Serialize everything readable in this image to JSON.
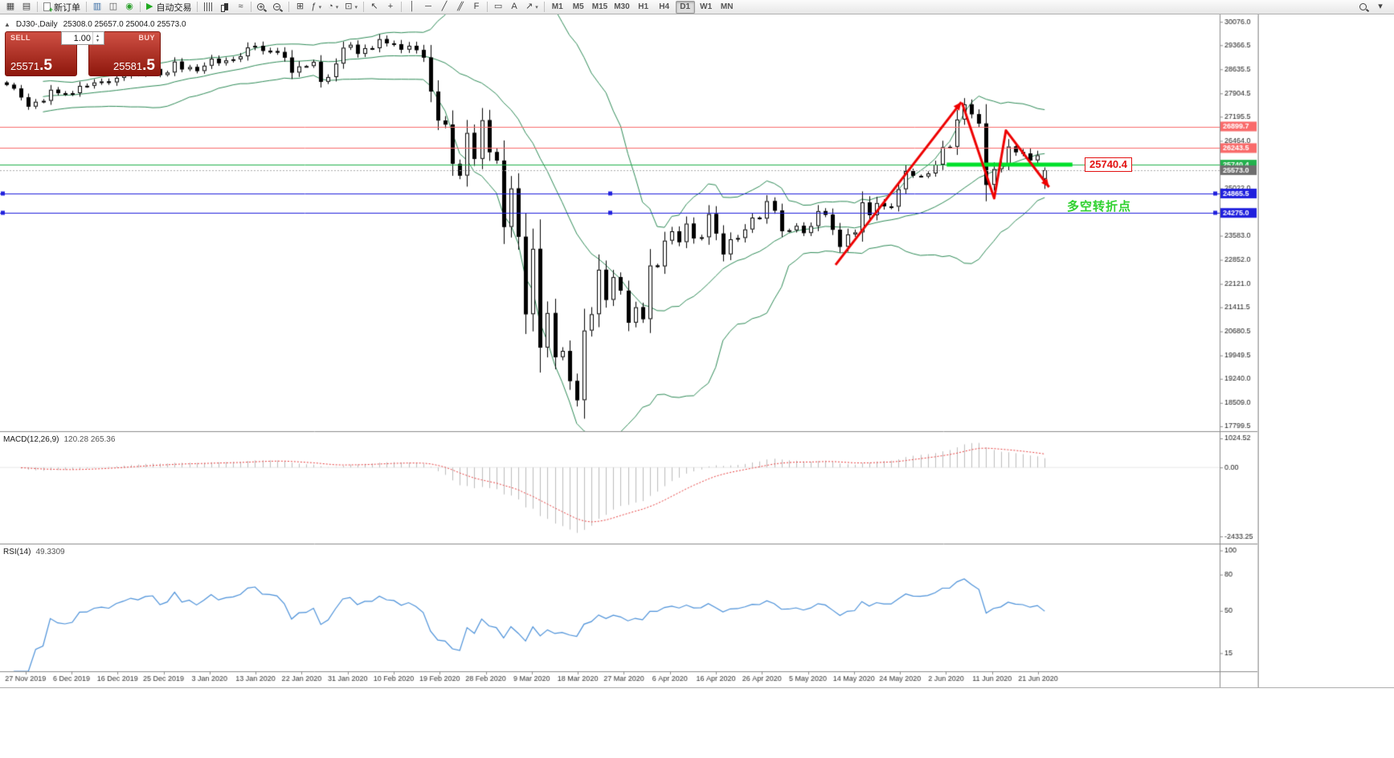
{
  "toolbar": {
    "caret_glyph": "▾",
    "items": [
      {
        "t": "btn",
        "name": "new-chart",
        "glyph": "▦"
      },
      {
        "t": "btn",
        "name": "chart-profiles",
        "glyph": "▤"
      },
      {
        "t": "sep"
      },
      {
        "t": "btn",
        "name": "new-order-button",
        "icon_class": "icon-doc",
        "label": "新订单"
      },
      {
        "t": "sep"
      },
      {
        "t": "btn",
        "name": "market-watch",
        "glyph": "▥",
        "color": "#3a6ea5"
      },
      {
        "t": "btn",
        "name": "data-window",
        "glyph": "◫",
        "color": "#555555"
      },
      {
        "t": "btn",
        "name": "expert-advisors",
        "glyph": "◉",
        "color": "#2ca02c"
      },
      {
        "t": "sep"
      },
      {
        "t": "btn",
        "name": "auto-trading-button",
        "glyph": "▶",
        "color": "#1faa1f",
        "label": "自动交易"
      },
      {
        "t": "sep"
      },
      {
        "t": "btn",
        "name": "bar-chart-mode",
        "icon_class": "icon-bars"
      },
      {
        "t": "btn",
        "name": "candlestick-mode",
        "icon_class": "icon-candles"
      },
      {
        "t": "btn",
        "name": "line-chart-mode",
        "glyph": "≈"
      },
      {
        "t": "sep"
      },
      {
        "t": "btn",
        "name": "zoom-in",
        "lens": "+"
      },
      {
        "t": "btn",
        "name": "zoom-out",
        "lens": "−"
      },
      {
        "t": "sep"
      },
      {
        "t": "btn",
        "name": "grid-toggle",
        "glyph": "⊞"
      },
      {
        "t": "btn",
        "name": "indicators-menu",
        "glyph": "ƒ",
        "caret": true
      },
      {
        "t": "btn",
        "name": "periods-menu",
        "glyph": "◔",
        "caret": true
      },
      {
        "t": "btn",
        "name": "templates-menu",
        "glyph": "⊡",
        "caret": true
      },
      {
        "t": "sep"
      },
      {
        "t": "btn",
        "name": "cursor-tool",
        "glyph": "↖"
      },
      {
        "t": "btn",
        "name": "crosshair-tool",
        "glyph": "+"
      },
      {
        "t": "sep"
      },
      {
        "t": "btn",
        "name": "vertical-line-tool",
        "glyph": "│"
      },
      {
        "t": "btn",
        "name": "horizontal-line-tool",
        "glyph": "─"
      },
      {
        "t": "btn",
        "name": "trendline-tool",
        "glyph": "╱"
      },
      {
        "t": "btn",
        "name": "channel-tool",
        "glyph": "╱╱",
        "squeeze": true
      },
      {
        "t": "btn",
        "name": "fibonacci-tool",
        "glyph": "F"
      },
      {
        "t": "sep"
      },
      {
        "t": "btn",
        "name": "shapes-tool",
        "glyph": "▭"
      },
      {
        "t": "btn",
        "name": "text-tool",
        "glyph": "A"
      },
      {
        "t": "btn",
        "name": "arrows-tool",
        "glyph": "↗",
        "caret": true
      },
      {
        "t": "sep"
      }
    ],
    "timeframes": [
      "M1",
      "M5",
      "M15",
      "M30",
      "H1",
      "H4",
      "D1",
      "W1",
      "MN"
    ],
    "active_timeframe": "D1",
    "right_items": [
      {
        "name": "search",
        "lens": ""
      },
      {
        "name": "toolbars-menu",
        "glyph": "▾"
      }
    ]
  },
  "chart_header": {
    "collapse_icon": "▲",
    "symbol_period": "DJ30-,Daily",
    "ohlc_text": "25308.0 25657.0 25004.0 25573.0"
  },
  "trade_panel": {
    "sell_label": "SELL",
    "buy_label": "BUY",
    "volume": "1.00",
    "spin_up": "▴",
    "spin_down": "▾",
    "sell_price_main": "25571",
    "sell_price_dec": ".5",
    "buy_price_main": "25581",
    "buy_price_dec": ".5",
    "sell_price": "25571.5",
    "buy_price": "25581.5"
  },
  "indicator_labels": {
    "macd_name": "MACD(12,26,9)",
    "macd_values": "120.28 265.36",
    "rsi_name": "RSI(14)",
    "rsi_value": "49.3309"
  },
  "chart_data": {
    "type": "candlestick",
    "symbol": "DJ30-",
    "timeframe": "Daily",
    "title": "DJ30-,Daily",
    "ohlc_current": {
      "open": 25308.0,
      "high": 25657.0,
      "low": 25004.0,
      "close": 25573.0
    },
    "ylim": {
      "main": [
        17650,
        30300
      ],
      "macd": [
        -2686,
        1250
      ],
      "rsi": [
        0,
        105
      ]
    },
    "price_axis": [
      30076.0,
      29366.5,
      28635.5,
      27904.5,
      27195.5,
      26464.0,
      25753.0,
      25022.0,
      24312.5,
      23583.0,
      22852.0,
      22121.0,
      21411.5,
      20680.5,
      19949.5,
      19240.0,
      18509.0,
      17799.5
    ],
    "macd_axis": [
      1024.52,
      0.0,
      -2433.25
    ],
    "rsi_axis": [
      100,
      80,
      50,
      15
    ],
    "time_axis": [
      "27 Nov 2019",
      "6 Dec 2019",
      "16 Dec 2019",
      "25 Dec 2019",
      "3 Jan 2020",
      "13 Jan 2020",
      "22 Jan 2020",
      "31 Jan 2020",
      "10 Feb 2020",
      "19 Feb 2020",
      "28 Feb 2020",
      "9 Mar 2020",
      "18 Mar 2020",
      "27 Mar 2020",
      "6 Apr 2020",
      "16 Apr 2020",
      "26 Apr 2020",
      "5 May 2020",
      "14 May 2020",
      "24 May 2020",
      "2 Jun 2020",
      "11 Jun 2020",
      "21 Jun 2020"
    ],
    "closes": [
      28164,
      28051,
      27783,
      27503,
      27650,
      27678,
      28015,
      27910,
      27882,
      27911,
      28132,
      28135,
      28236,
      28267,
      28239,
      28377,
      28455,
      28551,
      28516,
      28621,
      28645,
      28462,
      28538,
      28868,
      28635,
      28704,
      28584,
      28745,
      28957,
      28824,
      28907,
      28939,
      29030,
      29298,
      29348,
      29196,
      29186,
      29160,
      28990,
      28536,
      28723,
      28734,
      28859,
      28256,
      28400,
      28808,
      29291,
      29380,
      29103,
      29277,
      29276,
      29551,
      29423,
      29398,
      29232,
      29348,
      29220,
      28992,
      27961,
      27081,
      26958,
      25767,
      25409,
      26703,
      25917,
      27090,
      26121,
      25865,
      23851,
      25018,
      23553,
      21201,
      23186,
      20189,
      21237,
      19899,
      20087,
      19174,
      18592,
      20705,
      21201,
      22552,
      21637,
      22327,
      21917,
      20944,
      21413,
      21053,
      22680,
      22654,
      23434,
      23719,
      23391,
      23950,
      23504,
      23538,
      24242,
      23650,
      23019,
      23476,
      23515,
      23775,
      24134,
      24102,
      24634,
      24346,
      23724,
      23750,
      23883,
      23665,
      23876,
      24331,
      24222,
      23765,
      23248,
      23625,
      23685,
      24597,
      24207,
      24576,
      24474,
      24465,
      24995,
      25548,
      25401,
      25383,
      25475,
      25743,
      26270,
      26282,
      27111,
      27572,
      27272,
      26990,
      25128,
      25606,
      25763,
      26289,
      26120,
      26080,
      25871,
      26025,
      25573
    ],
    "bollinger": {
      "period": 20,
      "deviation": 2
    },
    "macd": {
      "fast": 12,
      "slow": 26,
      "signal": 9,
      "current_main": 120.28,
      "current_signal": 265.36
    },
    "rsi": {
      "period": 14,
      "current": 49.3309
    },
    "hlines": [
      {
        "price": 26899.7,
        "label": "26899.7",
        "color": "#f96b6b",
        "tag": "#f96b6b",
        "style": "solid",
        "width": 1
      },
      {
        "price": 26243.5,
        "label": "26243.5",
        "color": "#f96b6b",
        "tag": "#f96b6b",
        "style": "solid",
        "width": 1
      },
      {
        "price": 25740.4,
        "label": "25740.4",
        "color": "#22b14c",
        "tag": "#22b14c",
        "style": "solid",
        "width": 1
      },
      {
        "price": 25573.0,
        "label": "25573.0",
        "color": "#aaaaaa",
        "tag": "#6e6e6e",
        "style": "dot",
        "width": 1
      },
      {
        "price": 24865.5,
        "label": "24865.5",
        "color": "#2020dd",
        "tag": "#2020dd",
        "style": "solid",
        "width": 1,
        "handles": true
      },
      {
        "price": 24275.0,
        "label": "24275.0",
        "color": "#2020dd",
        "tag": "#2020dd",
        "style": "solid",
        "width": 1,
        "handles": true
      }
    ],
    "annotations": {
      "green_segment": {
        "price": 25740.4,
        "i1": 128.6,
        "i2": 145.8,
        "color": "#00e02a",
        "width": 5
      },
      "price_note": {
        "text": "25740.4",
        "color": "#e31212"
      },
      "turn_note": {
        "text": "多空转折点",
        "color": "#2fd12f"
      },
      "arrows": {
        "color": "#ee0000",
        "width": 3,
        "polylines": [
          [
            [
              113.4,
              22700
            ],
            [
              130.6,
              27640
            ]
          ],
          [
            [
              130.7,
              27620
            ],
            [
              135.1,
              24720
            ],
            [
              136.7,
              26780
            ],
            [
              142.6,
              25060
            ]
          ]
        ]
      }
    },
    "colors": {
      "bull": "#ffffff",
      "bear": "#000000",
      "outline": "#000000",
      "bollinger": "#2e8b57",
      "macd_hist": "#bdbdbd",
      "macd_signal": "#e84040",
      "rsi": "#4a90d9",
      "axis_text": "#1a1a1a",
      "time_text": "#333333"
    }
  }
}
